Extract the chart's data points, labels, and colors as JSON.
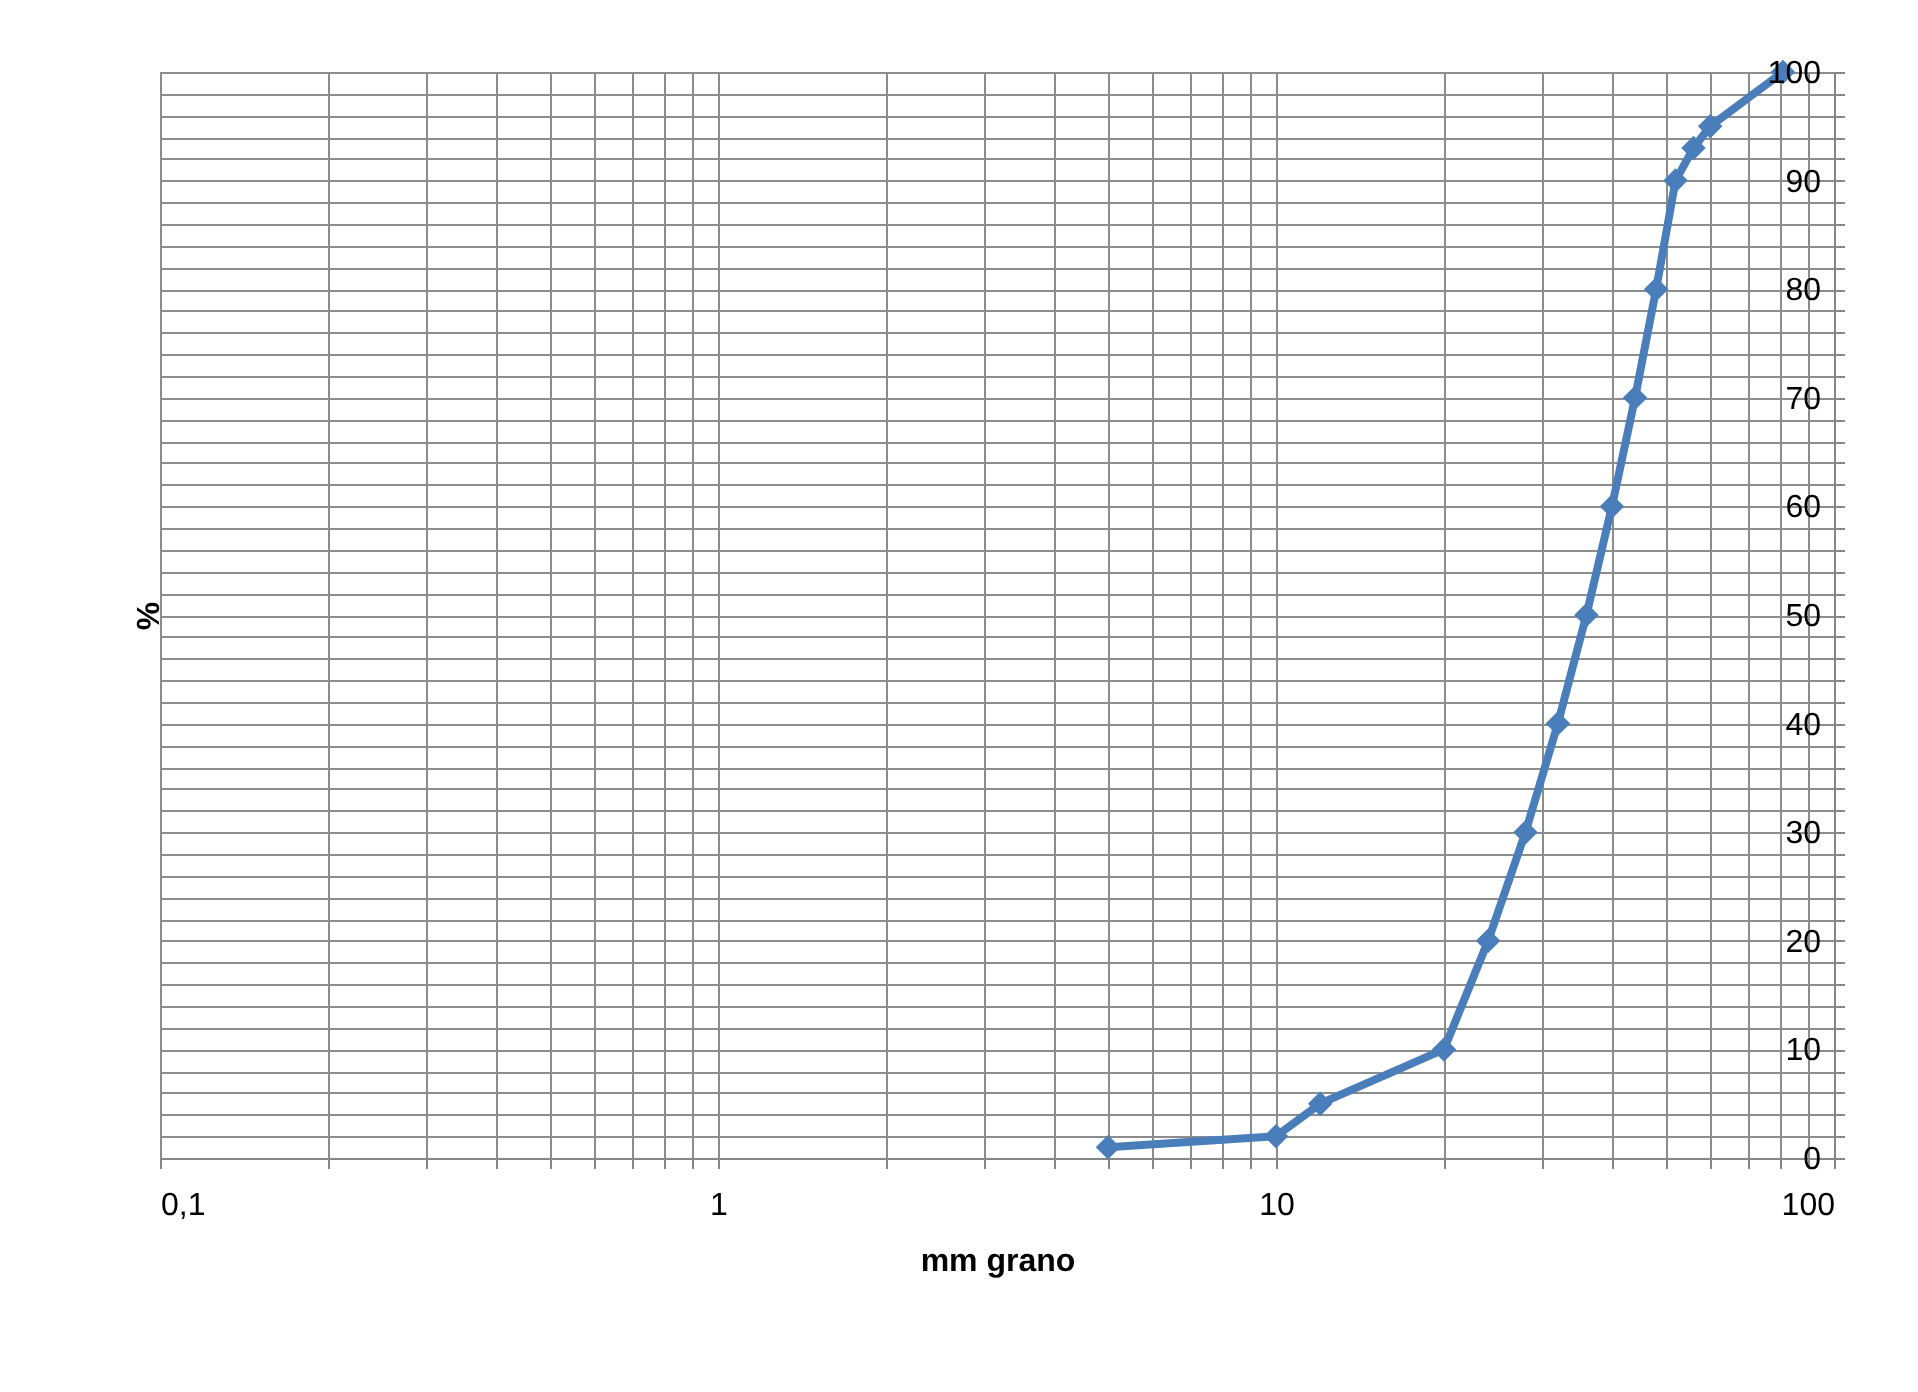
{
  "chart_data": {
    "type": "line",
    "xlabel": "mm grano",
    "ylabel": "%",
    "x": [
      5,
      10,
      12,
      20,
      24,
      28,
      32,
      36,
      40,
      44,
      48,
      52,
      56,
      60,
      81
    ],
    "series": [
      {
        "color": "#4a7ebb",
        "values": [
          1,
          2,
          5,
          10,
          20,
          30,
          40,
          50,
          60,
          70,
          80,
          90,
          93,
          95,
          100
        ]
      }
    ],
    "log": "x",
    "marker": "diamond",
    "line_style": "solid",
    "grid": true,
    "xlim": [
      0.1,
      100
    ],
    "xticks": [
      {
        "value": 0.1,
        "label": "0,1"
      },
      {
        "value": 0.2,
        "label": null
      },
      {
        "value": 0.3,
        "label": null
      },
      {
        "value": 0.4,
        "label": null
      },
      {
        "value": 0.5,
        "label": null
      },
      {
        "value": 0.6,
        "label": null
      },
      {
        "value": 0.7,
        "label": null
      },
      {
        "value": 0.8,
        "label": null
      },
      {
        "value": 0.9,
        "label": null
      },
      1,
      {
        "value": 2,
        "label": null
      },
      {
        "value": 3,
        "label": null
      },
      {
        "value": 4,
        "label": null
      },
      {
        "value": 5,
        "label": null
      },
      {
        "value": 6,
        "label": null
      },
      {
        "value": 7,
        "label": null
      },
      {
        "value": 8,
        "label": null
      },
      {
        "value": 9,
        "label": null
      },
      10,
      {
        "value": 20,
        "label": null
      },
      {
        "value": 30,
        "label": null
      },
      {
        "value": 40,
        "label": null
      },
      {
        "value": 50,
        "label": null
      },
      {
        "value": 60,
        "label": null
      },
      {
        "value": 70,
        "label": null
      },
      {
        "value": 80,
        "label": null
      },
      {
        "value": 90,
        "label": null
      },
      100
    ],
    "ylim": [
      0,
      100
    ],
    "yticks": [
      0,
      {
        "value": 2,
        "label": null
      },
      {
        "value": 4,
        "label": null
      },
      {
        "value": 6,
        "label": null
      },
      {
        "value": 8,
        "label": null
      },
      10,
      {
        "value": 12,
        "label": null
      },
      {
        "value": 14,
        "label": null
      },
      {
        "value": 16,
        "label": null
      },
      {
        "value": 18,
        "label": null
      },
      20,
      {
        "value": 22,
        "label": null
      },
      {
        "value": 24,
        "label": null
      },
      {
        "value": 26,
        "label": null
      },
      {
        "value": 28,
        "label": null
      },
      30,
      {
        "value": 32,
        "label": null
      },
      {
        "value": 34,
        "label": null
      },
      {
        "value": 36,
        "label": null
      },
      {
        "value": 38,
        "label": null
      },
      40,
      {
        "value": 42,
        "label": null
      },
      {
        "value": 44,
        "label": null
      },
      {
        "value": 46,
        "label": null
      },
      {
        "value": 48,
        "label": null
      },
      50,
      {
        "value": 52,
        "label": null
      },
      {
        "value": 54,
        "label": null
      },
      {
        "value": 56,
        "label": null
      },
      {
        "value": 58,
        "label": null
      },
      60,
      {
        "value": 62,
        "label": null
      },
      {
        "value": 64,
        "label": null
      },
      {
        "value": 66,
        "label": null
      },
      {
        "value": 68,
        "label": null
      },
      70,
      {
        "value": 72,
        "label": null
      },
      {
        "value": 74,
        "label": null
      },
      {
        "value": 76,
        "label": null
      },
      {
        "value": 78,
        "label": null
      },
      80,
      {
        "value": 82,
        "label": null
      },
      {
        "value": 84,
        "label": null
      },
      {
        "value": 86,
        "label": null
      },
      {
        "value": 88,
        "label": null
      },
      90,
      {
        "value": 92,
        "label": null
      },
      {
        "value": 94,
        "label": null
      },
      {
        "value": 96,
        "label": null
      },
      {
        "value": 98,
        "label": null
      },
      100
    ]
  }
}
